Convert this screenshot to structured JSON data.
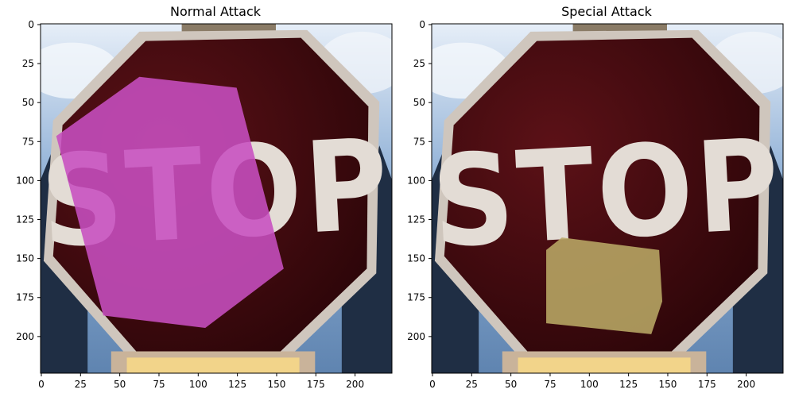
{
  "chart_data": [
    {
      "type": "image",
      "title": "Normal Attack",
      "xlim": [
        0,
        224
      ],
      "ylim": [
        224,
        0
      ],
      "x_ticks": [
        0,
        25,
        50,
        75,
        100,
        125,
        150,
        175,
        200
      ],
      "y_ticks": [
        0,
        25,
        50,
        75,
        100,
        125,
        150,
        175,
        200
      ],
      "sign_text": "STOP",
      "overlay": {
        "color": "#c74fc0",
        "polygon": [
          [
            10,
            72
          ],
          [
            63,
            34
          ],
          [
            125,
            41
          ],
          [
            155,
            157
          ],
          [
            105,
            195
          ],
          [
            40,
            187
          ]
        ]
      }
    },
    {
      "type": "image",
      "title": "Special Attack",
      "xlim": [
        0,
        224
      ],
      "ylim": [
        224,
        0
      ],
      "x_ticks": [
        0,
        25,
        50,
        75,
        100,
        125,
        150,
        175,
        200
      ],
      "y_ticks": [
        0,
        25,
        50,
        75,
        100,
        125,
        150,
        175,
        200
      ],
      "sign_text": "STOP",
      "overlay": {
        "color": "#b9a865",
        "polygon": [
          [
            73,
            145
          ],
          [
            83,
            137
          ],
          [
            145,
            145
          ],
          [
            147,
            178
          ],
          [
            141,
            196
          ],
          [
            140,
            199
          ],
          [
            73,
            192
          ]
        ]
      }
    }
  ],
  "colors": {
    "sign_red": "#3f0a0d",
    "sign_border": "#cfc6bd",
    "sky": "#9fb7d3",
    "trees": "#1f2e44"
  }
}
